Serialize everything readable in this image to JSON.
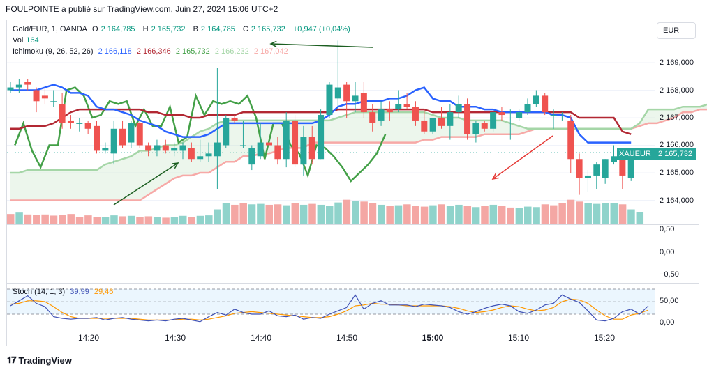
{
  "header": {
    "text": "FOULPOINTE a publié sur TradingView.com, Juin 27, 2024 15:06 UTC+2"
  },
  "legend": {
    "symbol": "Gold/EUR, 1, OANDA",
    "o_label": "O",
    "o_value": "2 164,785",
    "h_label": "H",
    "h_value": "2 165,732",
    "b_label": "B",
    "b_value": "2 164,785",
    "c_label": "C",
    "c_value": "2 165,732",
    "change": "+0,947 (+0,04%)",
    "vol_label": "Vol",
    "vol_value": "164",
    "ichimoku_label": "Ichimoku (9, 26, 52, 26)",
    "ich_v1": "2 166,118",
    "ich_v2": "2 166,346",
    "ich_v3": "2 165,732",
    "ich_v4": "2 166,232",
    "ich_v5": "2 167,042",
    "stoch_label": "Stoch (14, 1, 3)",
    "stoch_k": "39,99",
    "stoch_d": "29,46"
  },
  "currency": "EUR",
  "price_tag": {
    "symbol": "XAUEUR",
    "value": "2 165,732"
  },
  "footer": {
    "brand": "TradingView"
  },
  "colors": {
    "up": "#26a69a",
    "down": "#ef5350",
    "conversion": "#2962ff",
    "base": "#b22833",
    "lagging": "#43a047",
    "spanA": "#a5d6a7",
    "spanB": "#f7a9a7",
    "annotationGreen": "#1b5e20",
    "annotationRed": "#e53935"
  },
  "chart_data": [
    {
      "type": "candlestick",
      "title": "Gold/EUR, 1, OANDA",
      "x_ticks": [
        "14:20",
        "14:30",
        "14:40",
        "14:50",
        "15:00",
        "15:10",
        "15:20"
      ],
      "y_ticks": [
        "2 169,000",
        "2 168,000",
        "2 167,000",
        "2 166,000",
        "2 165,000",
        "2 164,000"
      ],
      "ylim": [
        2163.2,
        2170.2
      ],
      "candles": [
        [
          2168.0,
          2168.3,
          2167.9,
          2168.1
        ],
        [
          2168.1,
          2168.4,
          2167.9,
          2168.2
        ],
        [
          2168.3,
          2168.4,
          2168.0,
          2168.2
        ],
        [
          2168.0,
          2168.1,
          2167.2,
          2167.6
        ],
        [
          2167.8,
          2168.1,
          2167.5,
          2167.7
        ],
        [
          2167.6,
          2168.0,
          2167.4,
          2167.6
        ],
        [
          2167.5,
          2167.9,
          2166.6,
          2166.8
        ],
        [
          2166.9,
          2167.1,
          2166.6,
          2166.8
        ],
        [
          2166.8,
          2167.0,
          2166.5,
          2166.8
        ],
        [
          2166.8,
          2166.9,
          2166.4,
          2166.6
        ],
        [
          2166.7,
          2166.9,
          2165.7,
          2165.8
        ],
        [
          2165.8,
          2166.1,
          2165.7,
          2165.9
        ],
        [
          2165.7,
          2166.9,
          2165.3,
          2166.6
        ],
        [
          2166.6,
          2166.9,
          2165.9,
          2166.0
        ],
        [
          2166.1,
          2166.9,
          2165.9,
          2166.8
        ],
        [
          2166.8,
          2166.9,
          2165.9,
          2166.0
        ],
        [
          2166.0,
          2166.1,
          2165.6,
          2165.8
        ],
        [
          2165.8,
          2166.2,
          2165.6,
          2166.0
        ],
        [
          2166.0,
          2166.2,
          2165.7,
          2165.8
        ],
        [
          2165.8,
          2166.1,
          2165.6,
          2165.9
        ],
        [
          2165.8,
          2166.1,
          2165.5,
          2166.0
        ],
        [
          2165.9,
          2166.1,
          2165.4,
          2165.5
        ],
        [
          2165.5,
          2166.2,
          2165.4,
          2165.6
        ],
        [
          2165.6,
          2166.1,
          2165.4,
          2165.7
        ],
        [
          2165.6,
          2168.8,
          2164.4,
          2166.1
        ],
        [
          2166.0,
          2167.1,
          2165.9,
          2167.0
        ],
        [
          2167.0,
          2167.1,
          2166.8,
          2166.9
        ],
        [
          2166.0,
          2166.9,
          2165.9,
          2166.0
        ],
        [
          2165.3,
          2166.0,
          2165.1,
          2165.9
        ],
        [
          2165.6,
          2166.8,
          2165.5,
          2166.1
        ],
        [
          2166.1,
          2166.3,
          2165.6,
          2166.0
        ],
        [
          2166.0,
          2166.3,
          2165.3,
          2165.5
        ],
        [
          2165.5,
          2167.2,
          2165.2,
          2166.9
        ],
        [
          2166.9,
          2167.1,
          2165.2,
          2165.3
        ],
        [
          2165.3,
          2166.7,
          2164.9,
          2166.3
        ],
        [
          2166.3,
          2166.7,
          2165.3,
          2165.5
        ],
        [
          2165.5,
          2167.3,
          2165.5,
          2167.1
        ],
        [
          2167.1,
          2168.3,
          2167.0,
          2168.2
        ],
        [
          2167.7,
          2169.8,
          2167.3,
          2168.1
        ],
        [
          2168.2,
          2168.3,
          2167.0,
          2167.6
        ],
        [
          2167.6,
          2168.3,
          2167.2,
          2167.8
        ],
        [
          2167.9,
          2168.3,
          2167.0,
          2167.2
        ],
        [
          2167.2,
          2167.5,
          2166.5,
          2166.8
        ],
        [
          2166.9,
          2167.6,
          2166.7,
          2167.3
        ],
        [
          2167.3,
          2167.6,
          2166.9,
          2167.2
        ],
        [
          2167.3,
          2168.0,
          2167.2,
          2167.5
        ],
        [
          2167.5,
          2167.9,
          2167.3,
          2167.4
        ],
        [
          2167.4,
          2167.6,
          2166.7,
          2166.9
        ],
        [
          2166.9,
          2167.3,
          2166.4,
          2166.5
        ],
        [
          2166.5,
          2167.0,
          2166.4,
          2167.0
        ],
        [
          2167.0,
          2167.4,
          2166.6,
          2166.7
        ],
        [
          2166.7,
          2167.5,
          2166.2,
          2167.2
        ],
        [
          2167.2,
          2167.8,
          2167.0,
          2167.5
        ],
        [
          2167.5,
          2167.7,
          2166.2,
          2166.4
        ],
        [
          2166.4,
          2166.9,
          2166.1,
          2166.8
        ],
        [
          2166.8,
          2166.9,
          2166.5,
          2166.6
        ],
        [
          2166.6,
          2167.3,
          2166.5,
          2167.2
        ],
        [
          2167.2,
          2167.4,
          2166.9,
          2167.1
        ],
        [
          2167.0,
          2167.3,
          2166.2,
          2167.0
        ],
        [
          2167.0,
          2167.3,
          2166.9,
          2167.2
        ],
        [
          2167.2,
          2167.7,
          2167.1,
          2167.5
        ],
        [
          2167.5,
          2168.0,
          2167.4,
          2167.8
        ],
        [
          2167.8,
          2167.9,
          2167.1,
          2167.2
        ],
        [
          2167.1,
          2167.3,
          2166.6,
          2167.1
        ],
        [
          2167.0,
          2167.2,
          2166.9,
          2167.0
        ],
        [
          2166.9,
          2167.1,
          2165.0,
          2165.5
        ],
        [
          2165.5,
          2165.7,
          2164.2,
          2164.8
        ],
        [
          2164.8,
          2165.1,
          2164.3,
          2164.9
        ],
        [
          2164.9,
          2165.4,
          2164.4,
          2165.3
        ],
        [
          2164.8,
          2165.5,
          2164.6,
          2165.5
        ],
        [
          2165.4,
          2166.0,
          2165.3,
          2165.6
        ],
        [
          2165.6,
          2165.7,
          2164.4,
          2164.9
        ],
        [
          2164.8,
          2165.8,
          2164.7,
          2165.7
        ]
      ],
      "ichimoku_conversion": [
        2168.0,
        2168.0,
        2168.0,
        2168.0,
        2168.1,
        2168.2,
        2168.1,
        2167.9,
        2167.9,
        2167.8,
        2167.4,
        2167.3,
        2167.3,
        2167.2,
        2167.1,
        2166.9,
        2166.8,
        2166.7,
        2166.5,
        2166.4,
        2166.3,
        2166.3,
        2166.3,
        2166.4,
        2166.6,
        2166.8,
        2166.8,
        2166.8,
        2166.8,
        2166.8,
        2166.8,
        2166.8,
        2166.8,
        2166.8,
        2166.8,
        2166.8,
        2166.9,
        2167.1,
        2167.4,
        2167.5,
        2167.5,
        2167.6,
        2167.6,
        2167.6,
        2167.7,
        2167.7,
        2167.8,
        2168.0,
        2168.1,
        2167.7,
        2167.6,
        2167.6,
        2167.4,
        2167.4,
        2167.4,
        2167.3,
        2167.3,
        2167.2,
        2167.2,
        2167.2,
        2167.2,
        2167.2,
        2167.2,
        2167.1,
        2167.1,
        2167.0,
        2166.4,
        2166.1,
        2166.1,
        2166.1,
        2166.1,
        2166.1,
        2166.1
      ],
      "ichimoku_base": [
        2166.6,
        2166.6,
        2166.7,
        2166.7,
        2166.7,
        2166.8,
        2167.0,
        2167.2,
        2167.3,
        2167.3,
        2167.3,
        2167.3,
        2167.3,
        2167.3,
        2167.3,
        2167.3,
        2167.2,
        2167.2,
        2167.1,
        2167.1,
        2167.1,
        2167.0,
        2167.0,
        2167.1,
        2167.1,
        2167.1,
        2167.1,
        2167.2,
        2167.2,
        2167.2,
        2167.2,
        2167.2,
        2167.2,
        2167.2,
        2167.2,
        2167.2,
        2167.2,
        2167.2,
        2167.3,
        2167.3,
        2167.3,
        2167.3,
        2167.3,
        2167.3,
        2167.3,
        2167.3,
        2167.3,
        2167.3,
        2167.3,
        2167.2,
        2167.2,
        2167.2,
        2167.2,
        2167.2,
        2167.2,
        2167.2,
        2167.2,
        2167.2,
        2167.2,
        2167.2,
        2167.2,
        2167.2,
        2167.2,
        2167.2,
        2167.2,
        2167.2,
        2167.0,
        2167.0,
        2167.0,
        2167.0,
        2167.0,
        2166.5,
        2166.4
      ],
      "ichimoku_lagging": [
        2166.0,
        2166.8,
        2165.8,
        2165.2,
        2166.0,
        2166.0,
        2168.0,
        2168.1,
        2167.8,
        2167.0,
        2167.1,
        2167.6,
        2167.5,
        2167.6,
        2166.7,
        2167.3,
        2166.7,
        2166.7,
        2167.4,
        2166.1,
        2166.3,
        2167.8,
        2167.1,
        2167.6,
        2167.5,
        2167.6,
        2167.5,
        2167.8,
        2167.0,
        2165.5,
        2166.8,
        2166.8,
        2166.0,
        2165.7,
        2164.9,
        2166.0,
        2165.9,
        2165.6,
        2165.2,
        2164.7,
        2165.0,
        2165.3,
        2165.7,
        2166.4
      ],
      "ichimoku_spanA": [
        2165.0,
        2165.0,
        2165.1,
        2165.1,
        2165.1,
        2165.1,
        2165.1,
        2165.1,
        2165.1,
        2165.1,
        2165.1,
        2165.3,
        2165.4,
        2165.5,
        2165.6,
        2165.8,
        2165.8,
        2165.9,
        2166.0,
        2166.0,
        2166.1,
        2166.3,
        2166.5,
        2166.6,
        2166.8,
        2166.9,
        2166.9,
        2166.9,
        2166.9,
        2166.9,
        2166.9,
        2166.9,
        2166.9,
        2166.9,
        2166.9,
        2166.9,
        2166.9,
        2166.9,
        2167.0,
        2167.1,
        2167.2,
        2167.2,
        2167.2,
        2167.2,
        2167.2,
        2167.2,
        2167.2,
        2167.2,
        2167.2,
        2167.1,
        2167.0,
        2167.0,
        2167.0,
        2166.9,
        2166.9,
        2166.9,
        2166.9,
        2166.9,
        2166.8,
        2166.7,
        2166.6,
        2166.6,
        2166.6,
        2166.6,
        2166.6,
        2166.6,
        2166.6,
        2166.6,
        2166.6,
        2166.6,
        2166.6,
        2166.6,
        2166.6,
        2166.8,
        2167.3,
        2167.3,
        2167.3,
        2167.3,
        2167.4,
        2167.4,
        2167.4,
        2167.5,
        2167.6,
        2167.7,
        2167.5,
        2167.4,
        2167.3,
        2167.3,
        2167.3,
        2167.3,
        2167.3,
        2167.3,
        2167.3,
        2167.3,
        2167.3,
        2167.3,
        2167.3,
        2167.3,
        2167.3,
        2167.2,
        2166.9
      ],
      "ichimoku_spanB": [
        2164.0,
        2164.0,
        2164.0,
        2164.0,
        2164.0,
        2164.0,
        2164.0,
        2164.0,
        2164.0,
        2164.0,
        2164.0,
        2164.0,
        2164.0,
        2164.0,
        2164.0,
        2164.0,
        2164.2,
        2164.4,
        2164.6,
        2164.8,
        2164.9,
        2164.9,
        2165.0,
        2165.0,
        2165.2,
        2165.4,
        2165.4,
        2165.6,
        2165.6,
        2165.7,
        2165.7,
        2165.8,
        2165.9,
        2165.9,
        2165.9,
        2166.1,
        2166.1,
        2166.1,
        2166.1,
        2166.1,
        2166.1,
        2166.1,
        2166.1,
        2166.1,
        2166.1,
        2166.1,
        2166.1,
        2166.1,
        2166.2,
        2166.2,
        2166.3,
        2166.3,
        2166.3,
        2166.3,
        2166.3,
        2166.4,
        2166.4,
        2166.4,
        2166.4,
        2166.4,
        2166.5,
        2166.6,
        2166.6,
        2166.6,
        2166.6,
        2166.6,
        2166.6,
        2166.6,
        2166.6,
        2166.6,
        2166.6,
        2166.6,
        2166.6,
        2166.7,
        2166.8,
        2166.8,
        2166.9,
        2167.0,
        2167.2,
        2167.2,
        2167.3,
        2167.3,
        2167.3,
        2167.3,
        2167.3,
        2167.3,
        2167.3,
        2167.3,
        2167.3,
        2167.3,
        2167.3,
        2167.3,
        2167.3,
        2167.3,
        2167.3,
        2167.3,
        2167.3,
        2167.3,
        2167.3,
        2167.2,
        2167.2
      ]
    },
    {
      "type": "bar",
      "title": "Vol",
      "values": [
        42,
        48,
        40,
        38,
        40,
        35,
        38,
        42,
        30,
        36,
        28,
        30,
        36,
        32,
        34,
        30,
        32,
        28,
        26,
        30,
        34,
        30,
        34,
        36,
        62,
        88,
        82,
        90,
        84,
        86,
        82,
        84,
        80,
        88,
        82,
        86,
        82,
        78,
        92,
        104,
        100,
        96,
        88,
        82,
        76,
        80,
        84,
        78,
        74,
        80,
        84,
        78,
        82,
        76,
        72,
        76,
        82,
        76,
        70,
        68,
        74,
        72,
        84,
        80,
        88,
        104,
        96,
        90,
        86,
        90,
        88,
        84,
        62,
        50
      ],
      "up": [
        false,
        true,
        false,
        false,
        false,
        false,
        false,
        false,
        false,
        false,
        false,
        true,
        true,
        false,
        true,
        false,
        false,
        true,
        false,
        true,
        true,
        false,
        true,
        true,
        true,
        true,
        false,
        false,
        true,
        true,
        false,
        false,
        true,
        false,
        true,
        false,
        true,
        true,
        true,
        false,
        true,
        false,
        false,
        true,
        false,
        true,
        false,
        false,
        false,
        true,
        false,
        true,
        true,
        false,
        true,
        false,
        true,
        false,
        false,
        true,
        true,
        true,
        false,
        false,
        false,
        false,
        false,
        true,
        true,
        true,
        true,
        false,
        true,
        true
      ]
    },
    {
      "type": "line",
      "title": "Stoch (14, 1, 3)",
      "y_ticks": [
        "50,00",
        "0,00"
      ],
      "ylim": [
        -12,
        100
      ],
      "series": [
        {
          "name": "39,99",
          "values": [
            40,
            52,
            64,
            46,
            38,
            14,
            10,
            8,
            10,
            10,
            12,
            6,
            10,
            12,
            8,
            6,
            4,
            6,
            4,
            8,
            10,
            6,
            2,
            14,
            24,
            18,
            32,
            24,
            20,
            20,
            28,
            16,
            14,
            18,
            8,
            12,
            10,
            20,
            28,
            36,
            66,
            32,
            46,
            52,
            42,
            42,
            42,
            38,
            44,
            42,
            40,
            36,
            26,
            20,
            26,
            34,
            40,
            44,
            40,
            26,
            22,
            30,
            42,
            46,
            66,
            56,
            48,
            28,
            6,
            4,
            10,
            26,
            32,
            20,
            40
          ]
        },
        {
          "name": "29,46",
          "values": [
            44,
            46,
            52,
            52,
            50,
            38,
            24,
            14,
            10,
            10,
            10,
            10,
            10,
            10,
            10,
            8,
            6,
            6,
            6,
            6,
            8,
            8,
            6,
            8,
            12,
            16,
            22,
            24,
            26,
            24,
            22,
            20,
            18,
            16,
            14,
            12,
            12,
            14,
            20,
            28,
            40,
            42,
            46,
            44,
            44,
            42,
            40,
            40,
            40,
            40,
            40,
            38,
            34,
            28,
            24,
            26,
            30,
            36,
            40,
            38,
            32,
            28,
            30,
            36,
            50,
            56,
            54,
            46,
            30,
            16,
            8,
            8,
            18,
            22,
            30
          ]
        }
      ]
    }
  ]
}
